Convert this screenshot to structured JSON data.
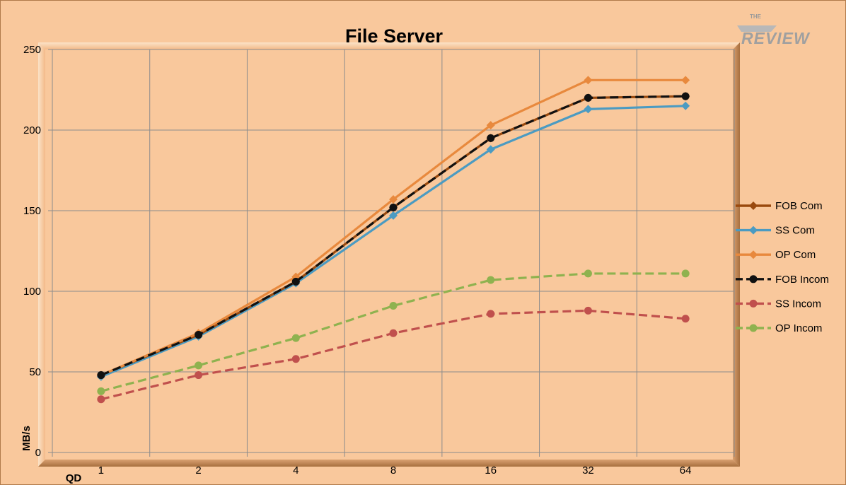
{
  "logo": {
    "top": "THE",
    "main": "REVIEW"
  },
  "chart_data": {
    "type": "line",
    "title": "File Server",
    "xlabel": "QD",
    "ylabel": "MB/s",
    "categories": [
      "1",
      "2",
      "4",
      "8",
      "16",
      "32",
      "64"
    ],
    "ylim": [
      0,
      250
    ],
    "yticks": [
      0,
      50,
      100,
      150,
      200,
      250
    ],
    "grid": true,
    "legend_position": "right",
    "series": [
      {
        "name": "FOB Com",
        "color": "#9a4a0e",
        "dashed": false,
        "marker": "diamond",
        "values": [
          48,
          73,
          106,
          152,
          195,
          220,
          221
        ]
      },
      {
        "name": "SS Com",
        "color": "#4b9bc2",
        "dashed": false,
        "marker": "diamond",
        "values": [
          47,
          72,
          105,
          147,
          188,
          213,
          215
        ]
      },
      {
        "name": "OP Com",
        "color": "#e8893d",
        "dashed": false,
        "marker": "diamond",
        "values": [
          48,
          74,
          109,
          157,
          203,
          231,
          231
        ]
      },
      {
        "name": "FOB Incom",
        "color": "#111111",
        "dashed": true,
        "marker": "circle",
        "values": [
          48,
          73,
          106,
          152,
          195,
          220,
          221
        ]
      },
      {
        "name": "SS Incom",
        "color": "#c0504d",
        "dashed": true,
        "marker": "circle",
        "values": [
          33,
          48,
          58,
          74,
          86,
          88,
          83
        ]
      },
      {
        "name": "OP Incom",
        "color": "#8fb24f",
        "dashed": true,
        "marker": "circle",
        "values": [
          38,
          54,
          71,
          91,
          107,
          111,
          111
        ]
      }
    ]
  }
}
